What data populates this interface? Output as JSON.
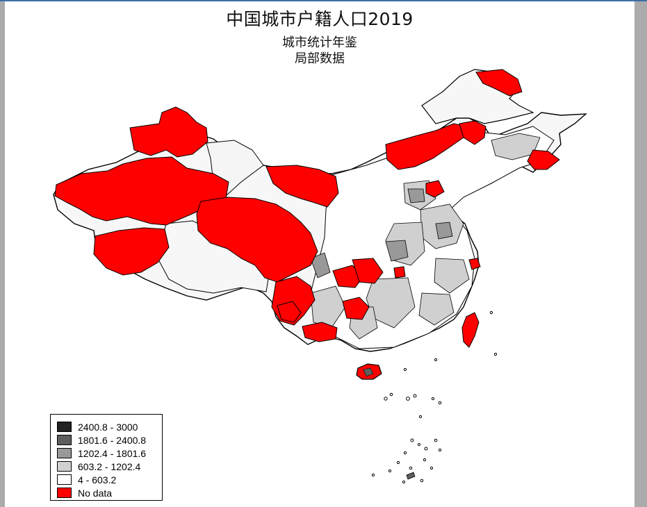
{
  "title": "中国城市户籍人口2019",
  "subtitle_1": "城市统计年鉴",
  "subtitle_2": "局部数据",
  "colors": {
    "no_data": "#ff0000",
    "class_1": "#ffffff",
    "class_2": "#d0d0d0",
    "class_3": "#999999",
    "class_4": "#5e5e5e",
    "class_5": "#222222",
    "light_region": "#f5f5f5",
    "border": "#000000"
  },
  "legend": {
    "items": [
      {
        "label": "2400.8 - 3000",
        "color": "#222222"
      },
      {
        "label": "1801.6 - 2400.8",
        "color": "#5e5e5e"
      },
      {
        "label": "1202.4 - 1801.6",
        "color": "#999999"
      },
      {
        "label": "603.2 - 1202.4",
        "color": "#d0d0d0"
      },
      {
        "label": "4 - 603.2",
        "color": "#ffffff"
      },
      {
        "label": "No data",
        "color": "#ff0000"
      }
    ]
  }
}
